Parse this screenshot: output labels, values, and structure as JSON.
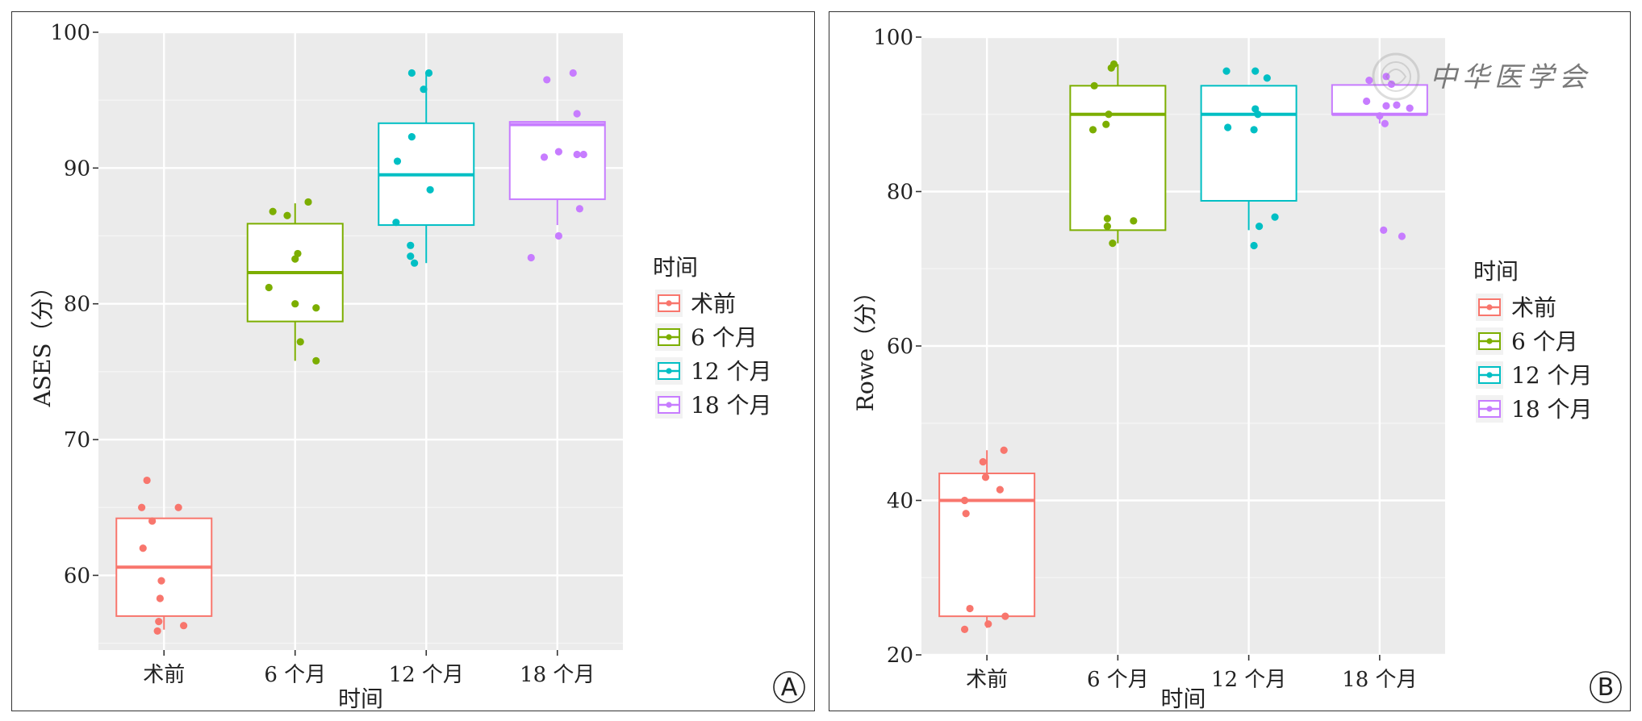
{
  "chart_data": [
    {
      "type": "box",
      "panel_label": "A",
      "xlabel": "时间",
      "ylabel": "ASES（分）",
      "ylim": [
        54.5,
        100
      ],
      "yticks": [
        60,
        70,
        80,
        90,
        100
      ],
      "categories": [
        "术前",
        "6 个月",
        "12 个月",
        "18 个月"
      ],
      "legend": {
        "title": "时间",
        "position": "right",
        "entries": [
          "术前",
          "6 个月",
          "12 个月",
          "18 个月"
        ]
      },
      "grid": true,
      "series": [
        {
          "name": "术前",
          "color": "#F8766D",
          "box": {
            "q1": 57.0,
            "median": 60.6,
            "q3": 64.2,
            "whisker_low": 56.0,
            "whisker_high": 64.2
          },
          "points": [
            [
              -0.13,
              67.0
            ],
            [
              -0.17,
              65.0
            ],
            [
              -0.09,
              64.0
            ],
            [
              0.11,
              65.0
            ],
            [
              -0.16,
              62.0
            ],
            [
              -0.02,
              59.6
            ],
            [
              -0.03,
              58.3
            ],
            [
              -0.04,
              56.6
            ],
            [
              0.15,
              56.3
            ],
            [
              -0.05,
              55.9
            ]
          ]
        },
        {
          "name": "6 个月",
          "color": "#7CAE00",
          "box": {
            "q1": 78.7,
            "median": 82.3,
            "q3": 85.9,
            "whisker_low": 75.8,
            "whisker_high": 87.4
          },
          "points": [
            [
              -0.17,
              86.8
            ],
            [
              -0.06,
              86.5
            ],
            [
              0.1,
              87.5
            ],
            [
              0.02,
              83.7
            ],
            [
              0.0,
              83.3
            ],
            [
              -0.2,
              81.2
            ],
            [
              0.0,
              80.0
            ],
            [
              0.16,
              79.7
            ],
            [
              0.04,
              77.2
            ],
            [
              0.16,
              75.8
            ]
          ]
        },
        {
          "name": "12 个月",
          "color": "#00BFC4",
          "box": {
            "q1": 85.8,
            "median": 89.5,
            "q3": 93.3,
            "whisker_low": 83.0,
            "whisker_high": 97.0
          },
          "points": [
            [
              -0.11,
              97.0
            ],
            [
              0.02,
              97.0
            ],
            [
              -0.02,
              95.8
            ],
            [
              -0.11,
              92.3
            ],
            [
              -0.22,
              90.5
            ],
            [
              0.03,
              88.4
            ],
            [
              -0.23,
              86.0
            ],
            [
              -0.12,
              84.3
            ],
            [
              -0.12,
              83.5
            ],
            [
              -0.09,
              83.0
            ]
          ]
        },
        {
          "name": "18 个月",
          "color": "#C77CFF",
          "box": {
            "q1": 87.7,
            "median": 93.2,
            "q3": 93.4,
            "whisker_low": 85.8,
            "whisker_high": 93.4
          },
          "points": [
            [
              0.12,
              97.0
            ],
            [
              -0.08,
              96.5
            ],
            [
              0.15,
              94.0
            ],
            [
              -0.1,
              90.8
            ],
            [
              0.01,
              91.2
            ],
            [
              0.15,
              91.0
            ],
            [
              0.2,
              91.0
            ],
            [
              0.17,
              87.0
            ],
            [
              0.01,
              85.0
            ],
            [
              -0.2,
              83.4
            ]
          ]
        }
      ]
    },
    {
      "type": "box",
      "panel_label": "B",
      "xlabel": "时间",
      "ylabel": "Rowe（分）",
      "ylim": [
        20,
        100
      ],
      "yticks": [
        20,
        40,
        60,
        80,
        100
      ],
      "categories": [
        "术前",
        "6 个月",
        "12 个月",
        "18 个月"
      ],
      "legend": {
        "title": "时间",
        "position": "right",
        "entries": [
          "术前",
          "6 个月",
          "12 个月",
          "18 个月"
        ]
      },
      "grid": true,
      "series": [
        {
          "name": "术前",
          "color": "#F8766D",
          "box": {
            "q1": 25.0,
            "median": 40.0,
            "q3": 43.5,
            "whisker_low": 23.5,
            "whisker_high": 46.5
          },
          "points": [
            [
              0.13,
              46.5
            ],
            [
              -0.03,
              45.0
            ],
            [
              -0.01,
              43.0
            ],
            [
              0.1,
              41.4
            ],
            [
              -0.17,
              40.0
            ],
            [
              -0.16,
              38.3
            ],
            [
              -0.13,
              26.0
            ],
            [
              0.14,
              25.0
            ],
            [
              0.01,
              24.0
            ],
            [
              -0.17,
              23.3
            ]
          ]
        },
        {
          "name": "6 个月",
          "color": "#7CAE00",
          "box": {
            "q1": 75.0,
            "median": 90.0,
            "q3": 93.7,
            "whisker_low": 73.3,
            "whisker_high": 96.5
          },
          "points": [
            [
              -0.03,
              96.5
            ],
            [
              -0.05,
              96.0
            ],
            [
              -0.18,
              93.7
            ],
            [
              -0.07,
              90.0
            ],
            [
              -0.09,
              88.7
            ],
            [
              -0.19,
              88.0
            ],
            [
              -0.08,
              76.5
            ],
            [
              0.12,
              76.2
            ],
            [
              -0.08,
              75.5
            ],
            [
              -0.04,
              73.3
            ]
          ]
        },
        {
          "name": "12 个月",
          "color": "#00BFC4",
          "box": {
            "q1": 78.8,
            "median": 90.0,
            "q3": 93.7,
            "whisker_low": 75.0,
            "whisker_high": 93.7
          },
          "points": [
            [
              -0.17,
              95.6
            ],
            [
              0.05,
              95.6
            ],
            [
              0.14,
              94.7
            ],
            [
              0.05,
              90.7
            ],
            [
              0.07,
              90.0
            ],
            [
              -0.16,
              88.3
            ],
            [
              0.04,
              88.0
            ],
            [
              0.2,
              76.7
            ],
            [
              0.08,
              75.5
            ],
            [
              0.04,
              73.0
            ]
          ]
        },
        {
          "name": "18 个月",
          "color": "#C77CFF",
          "box": {
            "q1": 90.0,
            "median": 90.0,
            "q3": 93.8,
            "whisker_low": 88.8,
            "whisker_high": 93.8
          },
          "points": [
            [
              0.05,
              94.9
            ],
            [
              -0.08,
              94.4
            ],
            [
              0.09,
              93.9
            ],
            [
              -0.1,
              91.7
            ],
            [
              0.13,
              91.2
            ],
            [
              0.05,
              91.1
            ],
            [
              0.23,
              90.8
            ],
            [
              0.0,
              89.8
            ],
            [
              0.04,
              88.8
            ],
            [
              0.03,
              75.0
            ],
            [
              0.17,
              74.2
            ]
          ]
        }
      ]
    }
  ],
  "watermark": {
    "text": "中华医学会"
  }
}
